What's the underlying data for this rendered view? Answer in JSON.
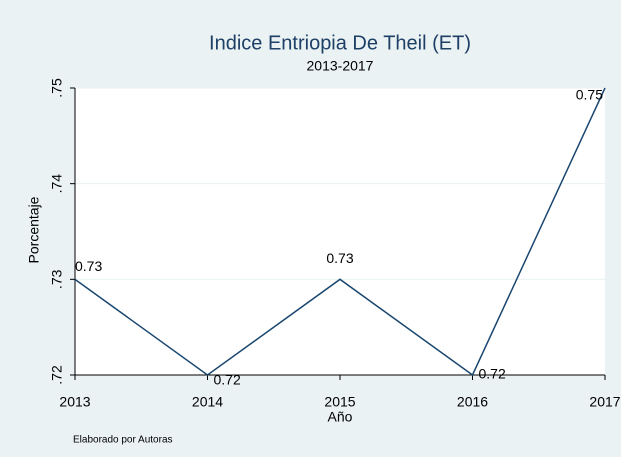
{
  "chart_data": {
    "type": "line",
    "title": "Indice Entriopia De Theil (ET)",
    "subtitle": "2013-2017",
    "x_label": "Año",
    "y_label": "Porcentaje",
    "note": "Elaborado por Autoras",
    "x": [
      2013,
      2014,
      2015,
      2016,
      2017
    ],
    "series": [
      {
        "name": "ET",
        "color": "#1a476f",
        "values": [
          0.73,
          0.72,
          0.73,
          0.72,
          0.75
        ]
      }
    ],
    "xlim": [
      2013,
      2017
    ],
    "xticks": [
      2013,
      2014,
      2015,
      2016,
      2017
    ],
    "ylim": [
      0.72,
      0.75
    ],
    "yticks": [
      {
        "value": 0.72,
        "label": ".72"
      },
      {
        "value": 0.73,
        "label": ".73"
      },
      {
        "value": 0.74,
        "label": ".74"
      },
      {
        "value": 0.75,
        "label": ".75"
      }
    ],
    "grid": true
  }
}
